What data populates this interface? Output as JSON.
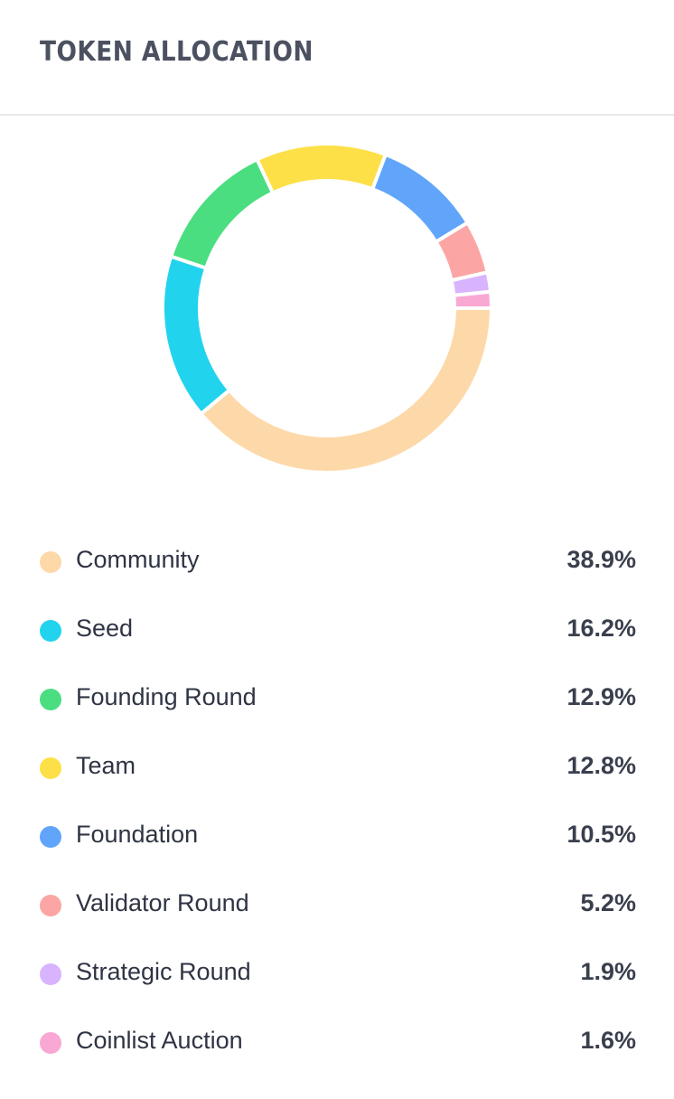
{
  "header": {
    "title": "TOKEN ALLOCATION"
  },
  "chart_data": {
    "type": "pie",
    "subtype": "donut",
    "title": "TOKEN ALLOCATION",
    "categories": [
      "Community",
      "Seed",
      "Founding Round",
      "Team",
      "Foundation",
      "Validator Round",
      "Strategic Round",
      "Coinlist Auction"
    ],
    "values": [
      38.9,
      16.2,
      12.9,
      12.8,
      10.5,
      5.2,
      1.9,
      1.6
    ],
    "value_suffix": "%",
    "colors": [
      "#fdd9a9",
      "#22d3ee",
      "#4ade80",
      "#fde047",
      "#60a5fa",
      "#fca5a5",
      "#d8b4fe",
      "#f9a8d4"
    ],
    "legend_position": "bottom"
  },
  "legend": {
    "items": [
      {
        "label": "Community",
        "value": "38.9%",
        "color": "#fdd9a9"
      },
      {
        "label": "Seed",
        "value": "16.2%",
        "color": "#22d3ee"
      },
      {
        "label": "Founding Round",
        "value": "12.9%",
        "color": "#4ade80"
      },
      {
        "label": "Team",
        "value": "12.8%",
        "color": "#fde047"
      },
      {
        "label": "Foundation",
        "value": "10.5%",
        "color": "#60a5fa"
      },
      {
        "label": "Validator Round",
        "value": "5.2%",
        "color": "#fca5a5"
      },
      {
        "label": "Strategic Round",
        "value": "1.9%",
        "color": "#d8b4fe"
      },
      {
        "label": "Coinlist Auction",
        "value": "1.6%",
        "color": "#f9a8d4"
      }
    ]
  }
}
